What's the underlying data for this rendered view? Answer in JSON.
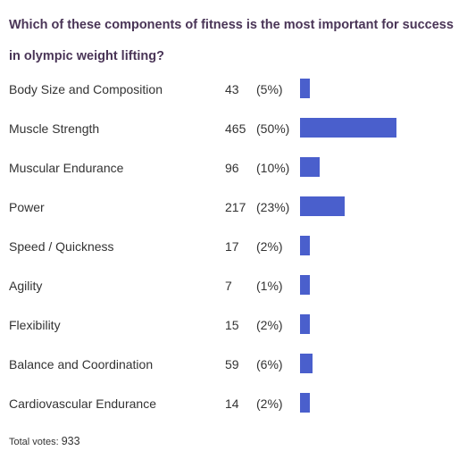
{
  "question": "Which of these components of fitness is the most important for success in olympic weight lifting?",
  "chart_data": {
    "type": "bar",
    "orientation": "horizontal",
    "title": "Which of these components of fitness is the most important for success in olympic weight lifting?",
    "categories": [
      "Body Size and Composition",
      "Muscle Strength",
      "Muscular Endurance",
      "Power",
      "Speed / Quickness",
      "Agility",
      "Flexibility",
      "Balance and Coordination",
      "Cardiovascular Endurance"
    ],
    "values": [
      43,
      465,
      96,
      217,
      17,
      7,
      15,
      59,
      14
    ],
    "percent_labels": [
      "(5%)",
      "(50%)",
      "(10%)",
      "(23%)",
      "(2%)",
      "(1%)",
      "(2%)",
      "(6%)",
      "(2%)"
    ],
    "bar_color": "#4a5fcc",
    "total": 933
  },
  "footer": {
    "total_label": "Total votes:",
    "total_value": "933"
  },
  "colors": {
    "question": "#4a3557",
    "text": "#333333",
    "bar": "#4a5fcc"
  }
}
